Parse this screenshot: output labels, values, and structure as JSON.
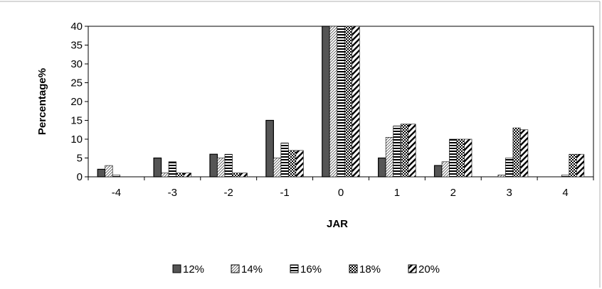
{
  "chart_data": {
    "type": "bar",
    "xlabel": "JAR",
    "ylabel": "Percentage%",
    "ylim": [
      0,
      40
    ],
    "yticks": [
      0,
      5,
      10,
      15,
      20,
      25,
      30,
      35,
      40
    ],
    "categories": [
      "-4",
      "-3",
      "-2",
      "-1",
      "0",
      "1",
      "2",
      "3",
      "4"
    ],
    "grid": false,
    "legend_position": "bottom",
    "series": [
      {
        "name": "12%",
        "pattern": "solid",
        "values": [
          2,
          5,
          6,
          15,
          40,
          5,
          3,
          0,
          0
        ]
      },
      {
        "name": "14%",
        "pattern": "light-diag",
        "values": [
          3,
          1,
          5,
          5,
          40,
          10.5,
          4,
          0.5,
          0
        ]
      },
      {
        "name": "16%",
        "pattern": "horizontal",
        "values": [
          0.5,
          4,
          6,
          9,
          40,
          13.5,
          10,
          5,
          0.5
        ]
      },
      {
        "name": "18%",
        "pattern": "checker",
        "values": [
          0,
          1,
          1,
          7,
          40,
          14,
          10,
          13,
          6
        ]
      },
      {
        "name": "20%",
        "pattern": "wide-diag",
        "values": [
          0,
          1,
          1,
          7,
          40,
          14,
          10,
          12.5,
          6
        ]
      }
    ]
  }
}
